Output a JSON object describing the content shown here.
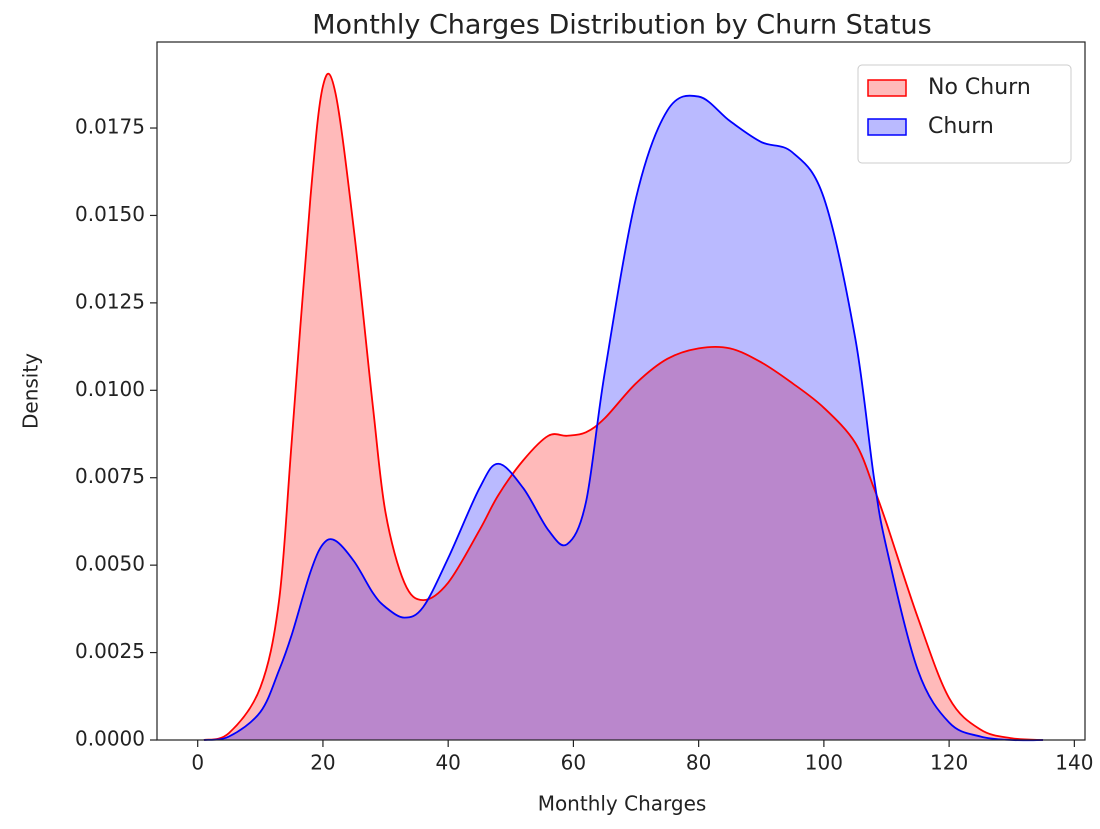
{
  "chart_data": {
    "type": "kde",
    "title": "Monthly Charges Distribution by Churn Status",
    "xlabel": "Monthly Charges",
    "ylabel": "Density",
    "x": [
      1,
      5,
      10,
      13,
      15,
      18,
      20,
      22,
      25,
      28,
      30,
      33,
      36,
      40,
      45,
      48,
      52,
      56,
      59,
      62,
      65,
      70,
      75,
      80,
      85,
      90,
      95,
      100,
      105,
      108,
      110,
      115,
      120,
      125,
      130,
      135
    ],
    "series": [
      {
        "name": "No Churn",
        "color": "red",
        "values": [
          0,
          0.0002,
          0.0015,
          0.004,
          0.0085,
          0.0155,
          0.0187,
          0.0185,
          0.0145,
          0.0095,
          0.0065,
          0.0045,
          0.004,
          0.0045,
          0.006,
          0.007,
          0.008,
          0.0087,
          0.0087,
          0.0088,
          0.0092,
          0.0102,
          0.0109,
          0.0112,
          0.0112,
          0.0108,
          0.0102,
          0.0095,
          0.0085,
          0.0072,
          0.0062,
          0.0035,
          0.0012,
          0.0003,
          5e-05,
          0
        ]
      },
      {
        "name": "Churn",
        "color": "blue",
        "values": [
          0,
          0.0001,
          0.0008,
          0.002,
          0.003,
          0.0048,
          0.0056,
          0.0057,
          0.0051,
          0.0042,
          0.0038,
          0.0035,
          0.0038,
          0.0052,
          0.0072,
          0.0079,
          0.0072,
          0.006,
          0.0056,
          0.0068,
          0.0105,
          0.0155,
          0.018,
          0.0184,
          0.0177,
          0.0171,
          0.0168,
          0.0155,
          0.0115,
          0.0075,
          0.0055,
          0.002,
          0.0005,
          0.0001,
          0,
          0
        ]
      }
    ],
    "xlim": [
      -6.5,
      141.7
    ],
    "ylim": [
      0,
      0.01996
    ],
    "xticks": [
      0,
      20,
      40,
      60,
      80,
      100,
      120,
      140
    ],
    "yticks": [
      {
        "value": 0,
        "label": "0.0000"
      },
      {
        "value": 0.0025,
        "label": "0.0025"
      },
      {
        "value": 0.005,
        "label": "0.0050"
      },
      {
        "value": 0.0075,
        "label": "0.0075"
      },
      {
        "value": 0.01,
        "label": "0.0100"
      },
      {
        "value": 0.0125,
        "label": "0.0125"
      },
      {
        "value": 0.015,
        "label": "0.0150"
      },
      {
        "value": 0.0175,
        "label": "0.0175"
      }
    ],
    "legend": "upper right",
    "fill_opacity": 0.27
  }
}
